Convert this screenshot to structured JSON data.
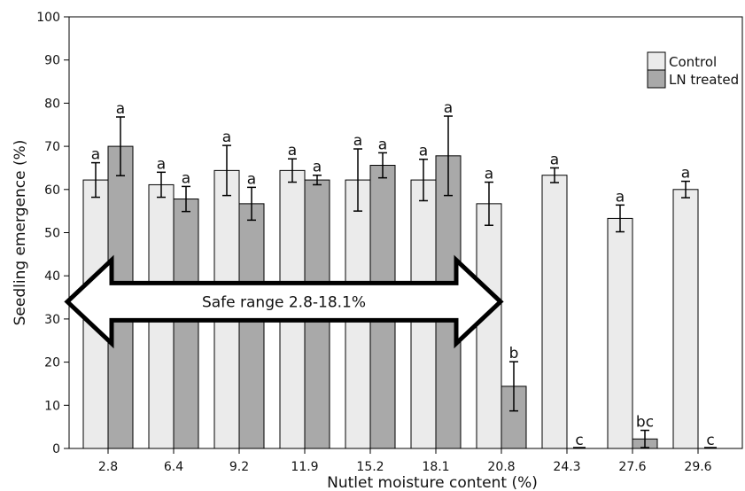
{
  "chart_data": {
    "type": "bar",
    "xlabel": "Nutlet moisture content (%)",
    "ylabel": "Seedling emergence (%)",
    "ylim": [
      0,
      100
    ],
    "yticks": [
      0,
      10,
      20,
      30,
      40,
      50,
      60,
      70,
      80,
      90,
      100
    ],
    "categories": [
      "2.8",
      "6.4",
      "9.2",
      "11.9",
      "15.2",
      "18.1",
      "20.8",
      "24.3",
      "27.6",
      "29.6"
    ],
    "grid": false,
    "legend_position": "top-right",
    "series": [
      {
        "name": "Control",
        "color": "#ebebeb",
        "values": [
          62.2,
          61.1,
          64.4,
          64.4,
          62.2,
          62.2,
          56.7,
          63.3,
          53.3,
          60.0
        ],
        "errors": [
          4.0,
          2.9,
          5.8,
          2.7,
          7.2,
          4.8,
          5.0,
          1.7,
          3.1,
          1.9
        ],
        "labels": [
          "a",
          "a",
          "a",
          "a",
          "a",
          "a",
          "a",
          "a",
          "a",
          "a"
        ]
      },
      {
        "name": "LN treated",
        "color": "#a9a9a9",
        "values": [
          70.0,
          57.8,
          56.7,
          62.2,
          65.6,
          67.8,
          14.4,
          0,
          2.2,
          0
        ],
        "errors": [
          6.8,
          2.9,
          3.8,
          1.1,
          2.9,
          9.2,
          5.7,
          0,
          2.0,
          0
        ],
        "labels": [
          "a",
          "a",
          "a",
          "a",
          "a",
          "a",
          "b",
          "c",
          "bc",
          "c"
        ]
      }
    ],
    "annotations": [
      {
        "text": "Safe range 2.8-18.1%",
        "from": "2.8",
        "to": "18.1",
        "value": 34
      }
    ]
  }
}
